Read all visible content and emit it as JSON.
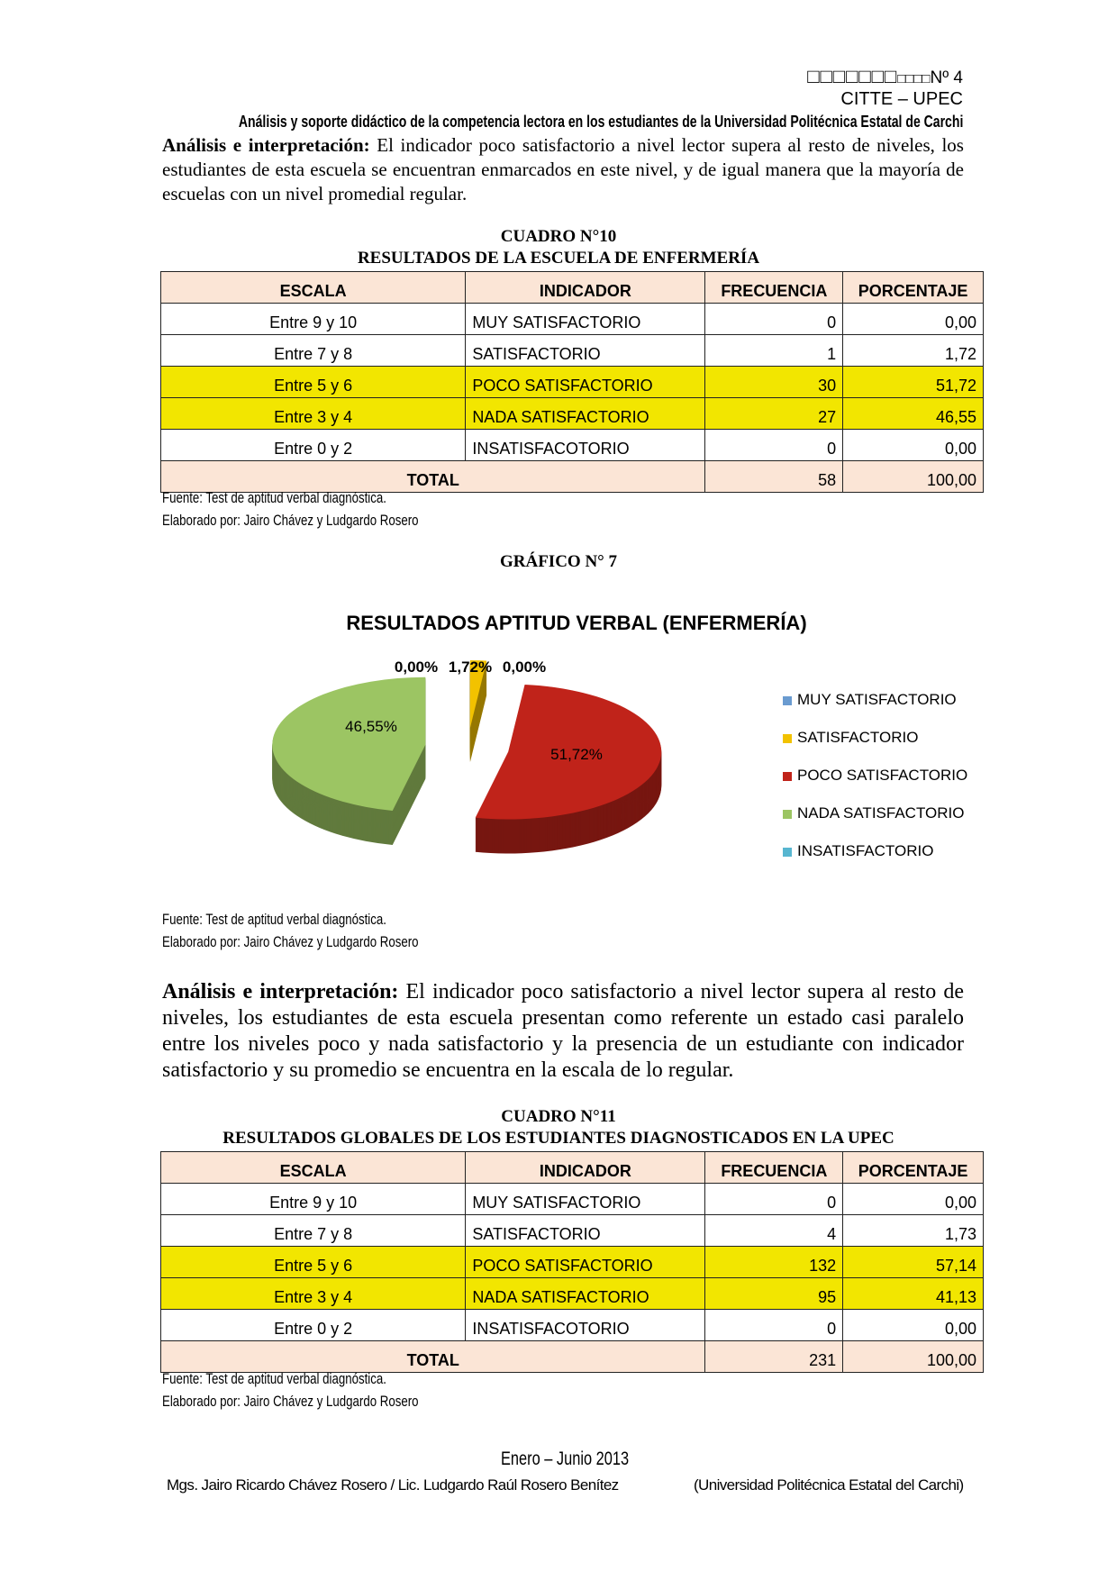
{
  "header": {
    "page_boxes_large": "□□□□□□□",
    "page_boxes_small": "□□□□",
    "page_number": "Nº 4",
    "organization": "CITTE – UPEC",
    "subtitle": "Análisis y soporte didáctico de la competencia lectora en los estudiantes de la Universidad Politécnica Estatal de Carchi"
  },
  "paragraph1": {
    "lead": "Análisis e interpretación:",
    "text": " El indicador poco satisfactorio a nivel lector supera al resto de niveles, los estudiantes de esta escuela se encuentran enmarcados en este nivel, y de igual manera que la mayoría de escuelas con un nivel promedial regular."
  },
  "table1": {
    "caption": "CUADRO N°10",
    "title": "RESULTADOS DE LA ESCUELA DE ENFERMERÍA",
    "headers": [
      "ESCALA",
      "INDICADOR",
      "FRECUENCIA",
      "PORCENTAJE"
    ],
    "rows": [
      {
        "escala": "Entre 9 y 10",
        "indicador": "MUY SATISFACTORIO",
        "frecuencia": "0",
        "porcentaje": "0,00",
        "highlight": false
      },
      {
        "escala": "Entre 7 y 8",
        "indicador": "SATISFACTORIO",
        "frecuencia": "1",
        "porcentaje": "1,72",
        "highlight": false
      },
      {
        "escala": "Entre 5 y 6",
        "indicador": "POCO SATISFACTORIO",
        "frecuencia": "30",
        "porcentaje": "51,72",
        "highlight": true
      },
      {
        "escala": "Entre 3 y 4",
        "indicador": "NADA SATISFACTORIO",
        "frecuencia": "27",
        "porcentaje": "46,55",
        "highlight": true
      },
      {
        "escala": "Entre 0 y 2",
        "indicador": "INSATISFACOTORIO",
        "frecuencia": "0",
        "porcentaje": "0,00",
        "highlight": false
      }
    ],
    "total": {
      "label": "TOTAL",
      "frecuencia": "58",
      "porcentaje": "100,00"
    },
    "source": "Fuente: Test de aptitud verbal diagnóstica.",
    "author": "Elaborado por: Jairo Chávez y Ludgardo Rosero"
  },
  "figure_caption": "GRÁFICO N° 7",
  "chart_data": {
    "type": "pie",
    "style": "3d-exploded",
    "title": "RESULTADOS APTITUD VERBAL (ENFERMERÍA)",
    "categories": [
      "MUY SATISFACTORIO",
      "SATISFACTORIO",
      "POCO SATISFACTORIO",
      "NADA SATISFACTORIO",
      "INSATISFACTORIO"
    ],
    "values": [
      0.0,
      1.72,
      51.72,
      46.55,
      0.0
    ],
    "data_labels": [
      "0,00%",
      "1,72%",
      "51,72%",
      "46,55%",
      "0,00%"
    ],
    "colors": [
      "#6a9bd0",
      "#f2c200",
      "#c0231a",
      "#9cc563",
      "#57b6d0"
    ],
    "legend_position": "right"
  },
  "chart_source": {
    "source": "Fuente: Test de aptitud verbal diagnóstica.",
    "author": "Elaborado por: Jairo Chávez y Ludgardo Rosero"
  },
  "paragraph2": {
    "lead": "Análisis e interpretación:",
    "text": " El indicador poco satisfactorio a nivel lector supera al resto de niveles, los estudiantes de esta escuela presentan como referente un estado casi paralelo entre los niveles poco y nada satisfactorio y la presencia de un estudiante con indicador satisfactorio y su promedio se encuentra en la escala de lo regular."
  },
  "table2": {
    "caption": "CUADRO N°11",
    "title": "RESULTADOS GLOBALES DE LOS ESTUDIANTES DIAGNOSTICADOS EN LA UPEC",
    "headers": [
      "ESCALA",
      "INDICADOR",
      "FRECUENCIA",
      "PORCENTAJE"
    ],
    "rows": [
      {
        "escala": "Entre 9 y 10",
        "indicador": "MUY SATISFACTORIO",
        "frecuencia": "0",
        "porcentaje": "0,00",
        "highlight": false
      },
      {
        "escala": "Entre 7 y 8",
        "indicador": "SATISFACTORIO",
        "frecuencia": "4",
        "porcentaje": "1,73",
        "highlight": false
      },
      {
        "escala": "Entre 5 y 6",
        "indicador": "POCO SATISFACTORIO",
        "frecuencia": "132",
        "porcentaje": "57,14",
        "highlight": true
      },
      {
        "escala": "Entre 3 y 4",
        "indicador": "NADA SATISFACTORIO",
        "frecuencia": "95",
        "porcentaje": "41,13",
        "highlight": true
      },
      {
        "escala": "Entre 0 y 2",
        "indicador": "INSATISFACOTORIO",
        "frecuencia": "0",
        "porcentaje": "0,00",
        "highlight": false
      }
    ],
    "total": {
      "label": "TOTAL",
      "frecuencia": "231",
      "porcentaje": "100,00"
    },
    "source": "Fuente: Test de aptitud verbal diagnóstica.",
    "author": "Elaborado por: Jairo Chávez y Ludgardo Rosero"
  },
  "footer": {
    "period": "Enero – Junio 2013",
    "authors": "Mgs. Jairo Ricardo Chávez Rosero / Lic. Ludgardo Raúl Rosero Benítez",
    "institution": "(Universidad Politécnica Estatal del Carchi)"
  }
}
